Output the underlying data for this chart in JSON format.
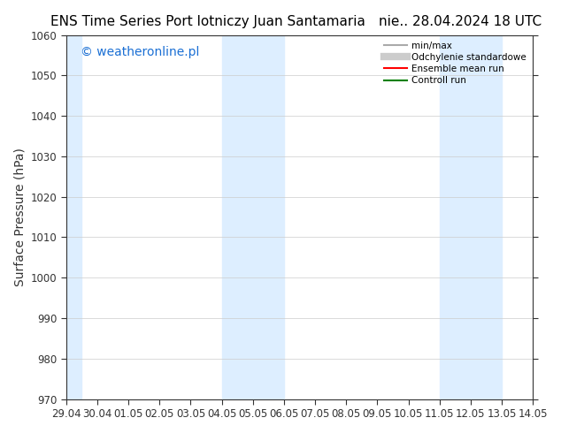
{
  "title": "ENS Time Series Port lotniczy Juan Santamaria",
  "date_label": "nie.. 28.04.2024 18 UTC",
  "ylabel": "Surface Pressure (hPa)",
  "ylim": [
    970,
    1060
  ],
  "yticks": [
    970,
    980,
    990,
    1000,
    1010,
    1020,
    1030,
    1040,
    1050,
    1060
  ],
  "xlim_start": 0,
  "xlim_end": 15,
  "xtick_labels": [
    "29.04",
    "30.04",
    "01.05",
    "02.05",
    "03.05",
    "04.05",
    "05.05",
    "06.05",
    "07.05",
    "08.05",
    "09.05",
    "10.05",
    "11.05",
    "12.05",
    "13.05",
    "14.05"
  ],
  "xtick_positions": [
    0,
    1,
    2,
    3,
    4,
    5,
    6,
    7,
    8,
    9,
    10,
    11,
    12,
    13,
    14,
    15
  ],
  "shaded_bands": [
    {
      "x_start": 0.0,
      "x_end": 0.5
    },
    {
      "x_start": 5.0,
      "x_end": 7.0
    },
    {
      "x_start": 12.0,
      "x_end": 14.0
    }
  ],
  "band_color": "#ddeeff",
  "watermark_text": "© weatheronline.pl",
  "watermark_color": "#1a6fd4",
  "legend_entries": [
    {
      "label": "min/max",
      "color": "#aaaaaa",
      "lw": 1.5,
      "style": "solid"
    },
    {
      "label": "Odchylenie standardowe",
      "color": "#cccccc",
      "lw": 6,
      "style": "solid"
    },
    {
      "label": "Ensemble mean run",
      "color": "red",
      "lw": 1.5,
      "style": "solid"
    },
    {
      "label": "Controll run",
      "color": "green",
      "lw": 1.5,
      "style": "solid"
    }
  ],
  "bg_color": "#ffffff",
  "grid_color": "#cccccc",
  "tick_color": "#333333",
  "font_size_title": 11,
  "font_size_axis": 10,
  "font_size_tick": 8.5,
  "font_size_watermark": 10
}
